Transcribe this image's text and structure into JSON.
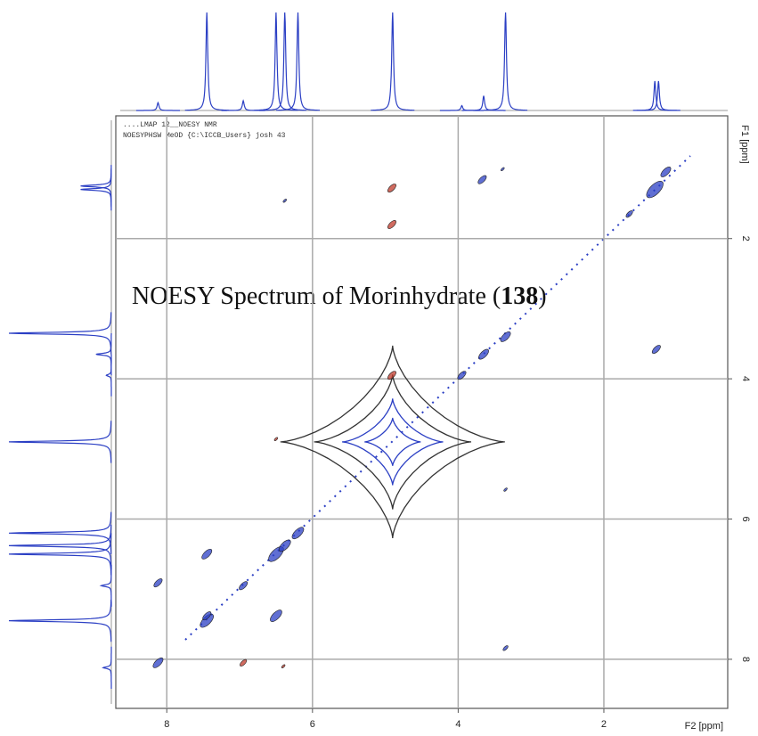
{
  "chart_data": {
    "type": "contour",
    "title_parts": [
      "NOESY Spectrum of Morinhydrate (",
      "138",
      ")"
    ],
    "header_lines": [
      "....LMAP 12__NOESY NMR",
      "NOESYPHSW MeOD {C:\\ICCB_Users} josh 43"
    ],
    "xlabel": "F2 [ppm]",
    "ylabel": "F1 [ppm]",
    "xlim": [
      8.7,
      0.3
    ],
    "xticks": [
      8,
      6,
      4,
      2
    ],
    "ylim": [
      0.25,
      8.7
    ],
    "yticks": [
      2,
      4,
      6,
      8
    ],
    "grid": true,
    "series": [
      {
        "color": "#2b3fc4",
        "x": [
          8.12,
          7.45,
          6.95,
          6.5,
          6.38,
          6.2,
          4.9,
          3.95,
          3.65,
          3.35,
          1.65,
          1.3,
          1.15,
          8.12,
          7.45,
          7.45,
          6.5,
          3.67,
          1.28,
          3.35,
          3.35,
          6.38,
          3.39
        ],
        "values": [
          8.05,
          7.45,
          6.95,
          6.5,
          6.38,
          6.2,
          4.9,
          3.95,
          3.65,
          3.4,
          1.65,
          1.3,
          1.05,
          6.91,
          6.5,
          7.38,
          7.38,
          1.16,
          3.58,
          7.84,
          5.58,
          1.46,
          1.01
        ],
        "sizes": [
          6,
          8,
          5,
          9,
          7,
          7,
          60,
          5,
          6,
          6,
          4,
          10,
          6,
          5,
          6,
          5,
          7,
          5,
          5,
          3,
          2,
          2,
          2
        ]
      },
      {
        "color": "#c0392b",
        "x": [
          4.91,
          4.91,
          4.91,
          6.95,
          6.5,
          6.4
        ],
        "values": [
          1.28,
          1.8,
          3.95,
          8.05,
          4.86,
          8.1
        ],
        "sizes": [
          5,
          5,
          5,
          4,
          2,
          2
        ]
      }
    ],
    "projection": {
      "color": "#2b3fc4",
      "x": [
        8.12,
        7.45,
        6.95,
        6.5,
        6.38,
        6.2,
        4.9,
        3.95,
        3.65,
        3.35,
        1.3,
        1.25
      ],
      "values": [
        8,
        100,
        10,
        100,
        100,
        100,
        100,
        5,
        15,
        100,
        30,
        30
      ]
    }
  }
}
